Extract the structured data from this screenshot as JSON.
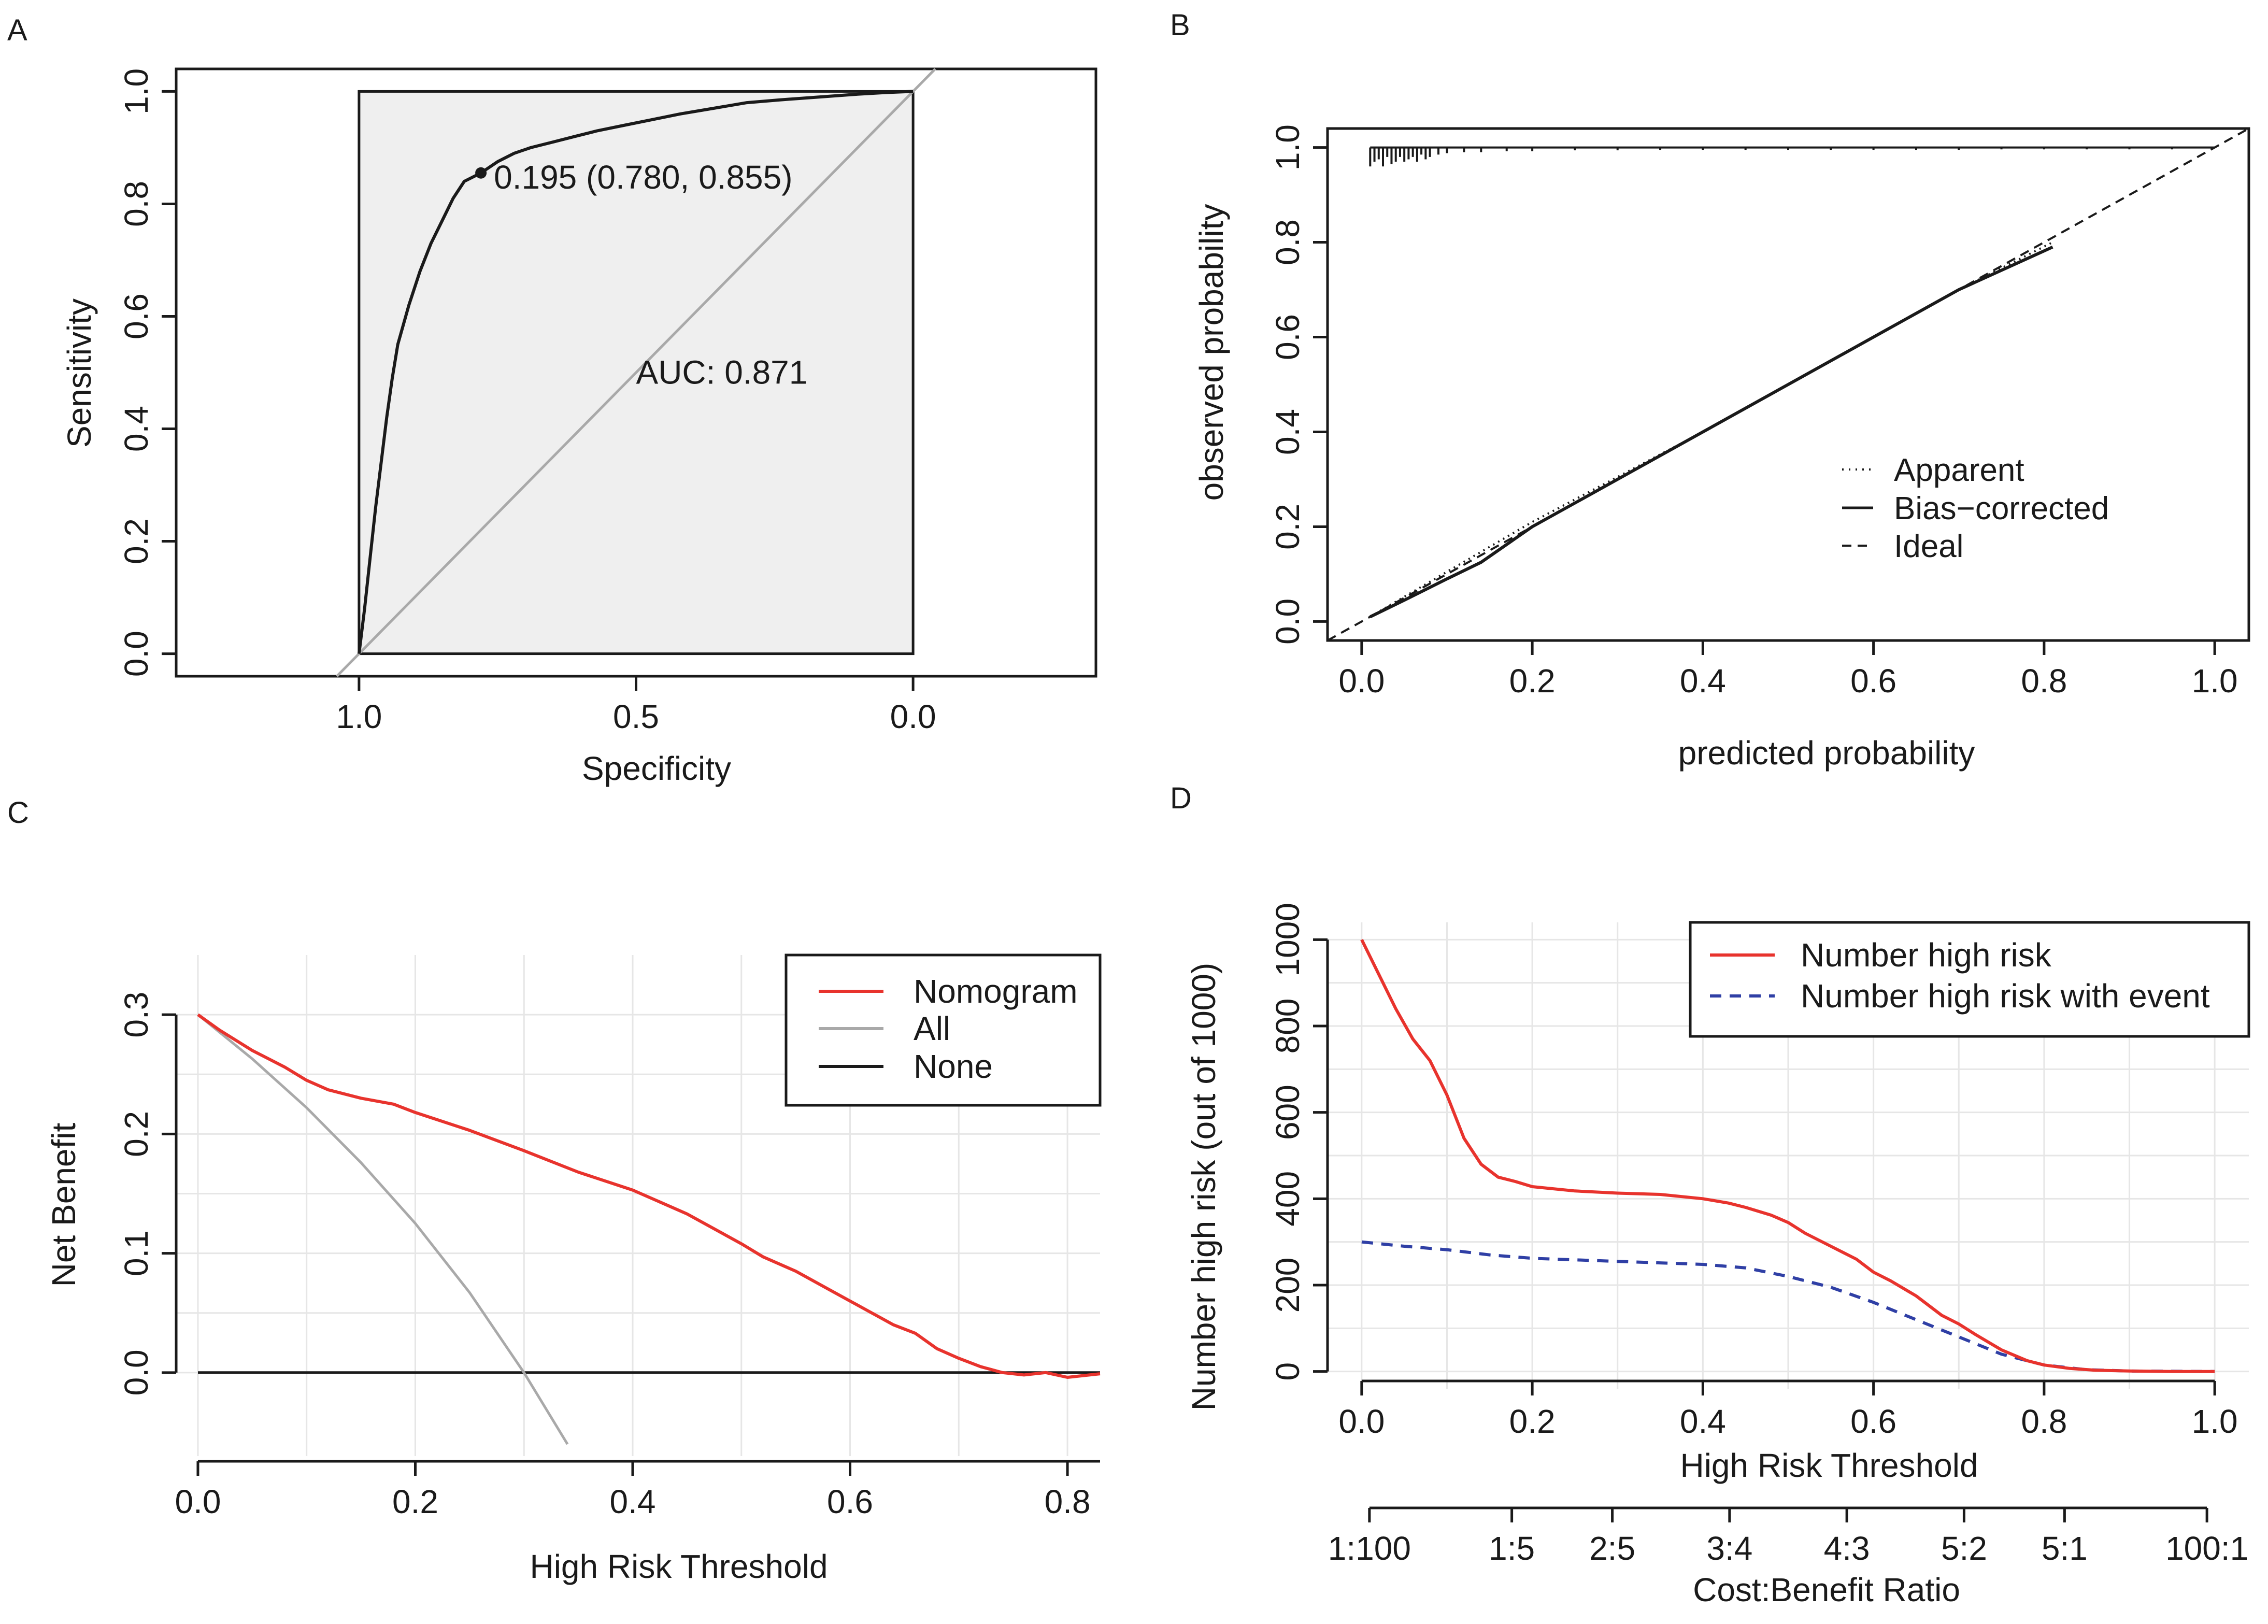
{
  "chart_data": [
    {
      "panel": "A",
      "type": "line",
      "subtype": "roc",
      "xlabel": "Specificity",
      "ylabel": "Sensitivity",
      "xlim": [
        1.33,
        -0.33
      ],
      "ylim": [
        -0.04,
        1.04
      ],
      "x_ticks": [
        1.0,
        0.5,
        0.0
      ],
      "x_tick_labels": [
        "1.0",
        "0.5",
        "0.0"
      ],
      "y_ticks": [
        0.0,
        0.2,
        0.4,
        0.6,
        0.8,
        1.0
      ],
      "y_tick_labels": [
        "0.0",
        "0.2",
        "0.4",
        "0.6",
        "0.8",
        "1.0"
      ],
      "auc_label": "AUC: 0.871",
      "threshold_point": {
        "specificity": 0.78,
        "sensitivity": 0.855,
        "label": "0.195 (0.780, 0.855)"
      },
      "series": [
        {
          "name": "ROC",
          "color": "#1a1a1a",
          "specificity": [
            1.0,
            0.99,
            0.98,
            0.97,
            0.96,
            0.95,
            0.94,
            0.93,
            0.91,
            0.89,
            0.87,
            0.85,
            0.83,
            0.81,
            0.78,
            0.75,
            0.72,
            0.69,
            0.65,
            0.61,
            0.57,
            0.52,
            0.47,
            0.42,
            0.36,
            0.3,
            0.24,
            0.17,
            0.1,
            0.05,
            0.0
          ],
          "sensitivity": [
            0.0,
            0.08,
            0.17,
            0.26,
            0.34,
            0.42,
            0.49,
            0.55,
            0.62,
            0.68,
            0.73,
            0.77,
            0.81,
            0.84,
            0.855,
            0.875,
            0.89,
            0.9,
            0.91,
            0.92,
            0.93,
            0.94,
            0.95,
            0.96,
            0.97,
            0.98,
            0.985,
            0.99,
            0.995,
            0.998,
            1.0
          ]
        },
        {
          "name": "Reference",
          "color": "#a9a9a9",
          "specificity": [
            1.04,
            -0.04
          ],
          "sensitivity": [
            -0.04,
            1.04
          ]
        }
      ]
    },
    {
      "panel": "B",
      "type": "line",
      "subtype": "calibration",
      "xlabel": "predicted probability",
      "ylabel": "observed probability",
      "xlim": [
        -0.04,
        1.04
      ],
      "ylim": [
        -0.04,
        1.04
      ],
      "x_ticks": [
        0.0,
        0.2,
        0.4,
        0.6,
        0.8,
        1.0
      ],
      "x_tick_labels": [
        "0.0",
        "0.2",
        "0.4",
        "0.6",
        "0.8",
        "1.0"
      ],
      "y_ticks": [
        0.0,
        0.2,
        0.4,
        0.6,
        0.8,
        1.0
      ],
      "y_tick_labels": [
        "0.0",
        "0.2",
        "0.4",
        "0.6",
        "0.8",
        "1.0"
      ],
      "legend": [
        "Apparent",
        "Bias−corrected",
        "Ideal"
      ],
      "legend_position": "bottom-right",
      "series": [
        {
          "name": "Apparent",
          "style": "dotted",
          "x": [
            0.01,
            0.1,
            0.2,
            0.3,
            0.4,
            0.5,
            0.6,
            0.7,
            0.81
          ],
          "y": [
            0.01,
            0.105,
            0.21,
            0.305,
            0.4,
            0.5,
            0.6,
            0.7,
            0.8
          ]
        },
        {
          "name": "Bias−corrected",
          "style": "solid",
          "x": [
            0.01,
            0.05,
            0.1,
            0.14,
            0.2,
            0.3,
            0.4,
            0.5,
            0.6,
            0.7,
            0.81
          ],
          "y": [
            0.01,
            0.045,
            0.09,
            0.125,
            0.2,
            0.3,
            0.4,
            0.5,
            0.6,
            0.7,
            0.79
          ]
        },
        {
          "name": "Ideal",
          "style": "dashed",
          "x": [
            -0.04,
            1.04
          ],
          "y": [
            -0.04,
            1.04
          ]
        }
      ],
      "rug_x": [
        0.01,
        0.015,
        0.02,
        0.025,
        0.03,
        0.035,
        0.04,
        0.045,
        0.05,
        0.055,
        0.06,
        0.065,
        0.07,
        0.075,
        0.08,
        0.09,
        0.1,
        0.12,
        0.14,
        0.17,
        0.2,
        0.25,
        0.3,
        0.35,
        0.4,
        0.45,
        0.5,
        0.55,
        0.6,
        0.65,
        0.7,
        0.75,
        0.8,
        0.85,
        0.9,
        0.95
      ],
      "rug_len": [
        0.04,
        0.03,
        0.025,
        0.04,
        0.02,
        0.035,
        0.03,
        0.02,
        0.03,
        0.025,
        0.02,
        0.03,
        0.015,
        0.025,
        0.02,
        0.015,
        0.012,
        0.01,
        0.01,
        0.008,
        0.008,
        0.006,
        0.006,
        0.005,
        0.005,
        0.005,
        0.005,
        0.005,
        0.005,
        0.005,
        0.005,
        0.004,
        0.004,
        0.004,
        0.004,
        0.004
      ]
    },
    {
      "panel": "C",
      "type": "line",
      "subtype": "decision-curve",
      "xlabel": "High Risk Threshold",
      "ylabel": "Net Benefit",
      "xlim": [
        -0.02,
        0.83
      ],
      "ylim": [
        -0.07,
        0.35
      ],
      "x_ticks": [
        0.0,
        0.2,
        0.4,
        0.6,
        0.8
      ],
      "x_tick_labels": [
        "0.0",
        "0.2",
        "0.4",
        "0.6",
        "0.8"
      ],
      "y_ticks": [
        0.0,
        0.1,
        0.2,
        0.3
      ],
      "y_tick_labels": [
        "0.0",
        "0.1",
        "0.2",
        "0.3"
      ],
      "grid": true,
      "legend": [
        "Nomogram",
        "All",
        "None"
      ],
      "legend_position": "top-right",
      "series": [
        {
          "name": "Nomogram",
          "color": "#e8332d",
          "x": [
            0.0,
            0.02,
            0.05,
            0.08,
            0.1,
            0.12,
            0.15,
            0.18,
            0.2,
            0.25,
            0.3,
            0.35,
            0.4,
            0.45,
            0.5,
            0.52,
            0.55,
            0.58,
            0.6,
            0.62,
            0.64,
            0.66,
            0.68,
            0.7,
            0.72,
            0.74,
            0.76,
            0.78,
            0.8,
            0.83
          ],
          "y": [
            0.3,
            0.287,
            0.27,
            0.256,
            0.245,
            0.237,
            0.23,
            0.225,
            0.218,
            0.203,
            0.186,
            0.168,
            0.153,
            0.133,
            0.108,
            0.097,
            0.085,
            0.07,
            0.06,
            0.05,
            0.04,
            0.033,
            0.02,
            0.012,
            0.005,
            0.0,
            -0.002,
            0.0,
            -0.004,
            -0.001
          ]
        },
        {
          "name": "All",
          "color": "#a9a9a9",
          "x": [
            0.0,
            0.05,
            0.1,
            0.15,
            0.2,
            0.25,
            0.3,
            0.34
          ],
          "y": [
            0.3,
            0.263,
            0.222,
            0.176,
            0.125,
            0.067,
            0.0,
            -0.06
          ]
        },
        {
          "name": "None",
          "color": "#1a1a1a",
          "x": [
            0.0,
            0.83
          ],
          "y": [
            0.0,
            0.0
          ]
        }
      ]
    },
    {
      "panel": "D",
      "type": "line",
      "subtype": "clinical-impact",
      "xlabel": "High Risk Threshold",
      "ylabel": "Number high risk (out of 1000)",
      "xlim": [
        -0.04,
        1.04
      ],
      "ylim": [
        -40,
        1040
      ],
      "x_ticks": [
        0.0,
        0.2,
        0.4,
        0.6,
        0.8,
        1.0
      ],
      "x_tick_labels": [
        "0.0",
        "0.2",
        "0.4",
        "0.6",
        "0.8",
        "1.0"
      ],
      "y_ticks": [
        0,
        200,
        400,
        600,
        800,
        1000
      ],
      "y_tick_labels": [
        "0",
        "200",
        "400",
        "600",
        "800",
        "1000"
      ],
      "grid": true,
      "cost_benefit_axis": {
        "label": "Cost:Benefit Ratio",
        "tick_labels": [
          "1:100",
          "1:5",
          "2:5",
          "3:4",
          "4:3",
          "5:2",
          "5:1",
          "100:1"
        ],
        "tick_positions": [
          0.0,
          0.17,
          0.29,
          0.43,
          0.57,
          0.71,
          0.83,
          1.0
        ]
      },
      "legend": [
        "Number high risk",
        "Number high risk with event"
      ],
      "legend_position": "top-right",
      "series": [
        {
          "name": "Number high risk",
          "color": "#e8332d",
          "style": "solid",
          "x": [
            0.0,
            0.02,
            0.04,
            0.06,
            0.08,
            0.1,
            0.12,
            0.14,
            0.16,
            0.18,
            0.2,
            0.25,
            0.3,
            0.35,
            0.4,
            0.43,
            0.45,
            0.48,
            0.5,
            0.52,
            0.55,
            0.58,
            0.6,
            0.62,
            0.65,
            0.68,
            0.7,
            0.72,
            0.75,
            0.78,
            0.8,
            0.83,
            0.86,
            0.9,
            0.95,
            1.0
          ],
          "y": [
            1000,
            920,
            840,
            770,
            720,
            640,
            540,
            480,
            450,
            440,
            428,
            418,
            413,
            410,
            400,
            390,
            380,
            362,
            345,
            320,
            290,
            260,
            230,
            210,
            175,
            130,
            110,
            85,
            50,
            25,
            15,
            7,
            3,
            1,
            0,
            0
          ]
        },
        {
          "name": "Number high risk with event",
          "color": "#2f3fa5",
          "style": "dashed",
          "x": [
            0.0,
            0.05,
            0.1,
            0.15,
            0.2,
            0.3,
            0.4,
            0.45,
            0.5,
            0.55,
            0.6,
            0.65,
            0.7,
            0.75,
            0.8,
            0.85,
            0.9,
            1.0
          ],
          "y": [
            300,
            290,
            282,
            270,
            262,
            255,
            248,
            240,
            220,
            195,
            160,
            120,
            80,
            40,
            15,
            4,
            1,
            0
          ]
        }
      ]
    }
  ]
}
